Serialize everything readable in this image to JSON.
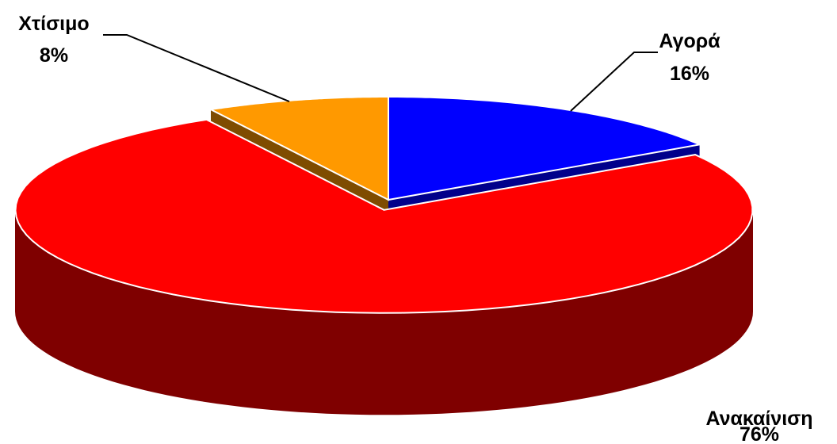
{
  "chart_data": {
    "type": "pie",
    "title": "",
    "legend": "none",
    "slices": [
      {
        "name": "Αγορά",
        "value": 16,
        "label": "16%",
        "color": "#0000ff",
        "side_color": "#00008b",
        "exploded": false
      },
      {
        "name": "Ανακαίνιση",
        "value": 76,
        "label": "76%",
        "color": "#ff0000",
        "side_color": "#7f0000",
        "exploded": true
      },
      {
        "name": "Χτίσιμο",
        "value": 8,
        "label": "8%",
        "color": "#ff9900",
        "side_color": "#7f4c00",
        "exploded": false
      }
    ]
  }
}
